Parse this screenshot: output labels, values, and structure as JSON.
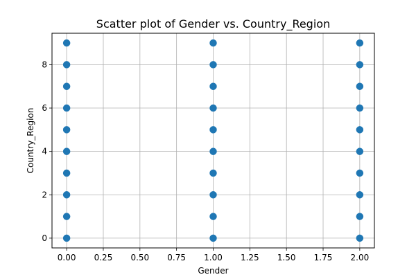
{
  "chart_data": {
    "type": "scatter",
    "title": "Scatter plot of Gender vs. Country_Region",
    "xlabel": "Gender",
    "ylabel": "Country_Region",
    "xlim": [
      -0.1,
      2.1
    ],
    "ylim": [
      -0.45,
      9.45
    ],
    "grid": true,
    "x_ticks": [
      "0.00",
      "0.25",
      "0.50",
      "0.75",
      "1.00",
      "1.25",
      "1.50",
      "1.75",
      "2.00"
    ],
    "y_ticks": [
      "0",
      "2",
      "4",
      "6",
      "8"
    ],
    "marker_color": "#1f77b4",
    "points": [
      {
        "x": 0,
        "y": 0
      },
      {
        "x": 0,
        "y": 1
      },
      {
        "x": 0,
        "y": 2
      },
      {
        "x": 0,
        "y": 3
      },
      {
        "x": 0,
        "y": 4
      },
      {
        "x": 0,
        "y": 5
      },
      {
        "x": 0,
        "y": 6
      },
      {
        "x": 0,
        "y": 7
      },
      {
        "x": 0,
        "y": 8
      },
      {
        "x": 0,
        "y": 9
      },
      {
        "x": 1,
        "y": 0
      },
      {
        "x": 1,
        "y": 1
      },
      {
        "x": 1,
        "y": 2
      },
      {
        "x": 1,
        "y": 3
      },
      {
        "x": 1,
        "y": 4
      },
      {
        "x": 1,
        "y": 5
      },
      {
        "x": 1,
        "y": 6
      },
      {
        "x": 1,
        "y": 7
      },
      {
        "x": 1,
        "y": 8
      },
      {
        "x": 1,
        "y": 9
      },
      {
        "x": 2,
        "y": 0
      },
      {
        "x": 2,
        "y": 1
      },
      {
        "x": 2,
        "y": 2
      },
      {
        "x": 2,
        "y": 3
      },
      {
        "x": 2,
        "y": 4
      },
      {
        "x": 2,
        "y": 5
      },
      {
        "x": 2,
        "y": 6
      },
      {
        "x": 2,
        "y": 7
      },
      {
        "x": 2,
        "y": 8
      },
      {
        "x": 2,
        "y": 9
      }
    ]
  }
}
